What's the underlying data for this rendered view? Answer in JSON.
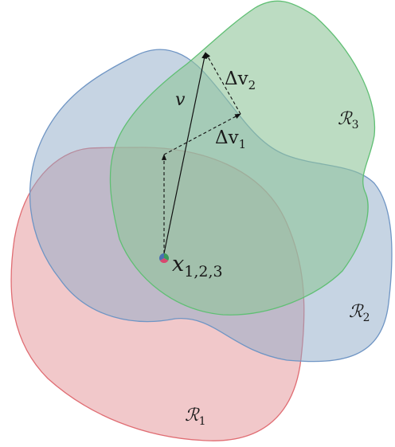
{
  "regions": [
    {
      "id": "R1",
      "label": "ℛ",
      "sub": "1",
      "fill": "#e8a3a6",
      "stroke": "#e06d73"
    },
    {
      "id": "R2",
      "label": "ℛ",
      "sub": "2",
      "fill": "#8eaac7",
      "stroke": "#6f95c4"
    },
    {
      "id": "R3",
      "label": "ℛ",
      "sub": "3",
      "fill": "#8fc49a",
      "stroke": "#5fbf73"
    }
  ],
  "point": {
    "label": "x",
    "sub": "1,2,3"
  },
  "vectors": {
    "v": {
      "label": "v"
    },
    "dv1": {
      "label": "Δv",
      "sub": "1"
    },
    "dv2": {
      "label": "Δv",
      "sub": "2"
    }
  }
}
